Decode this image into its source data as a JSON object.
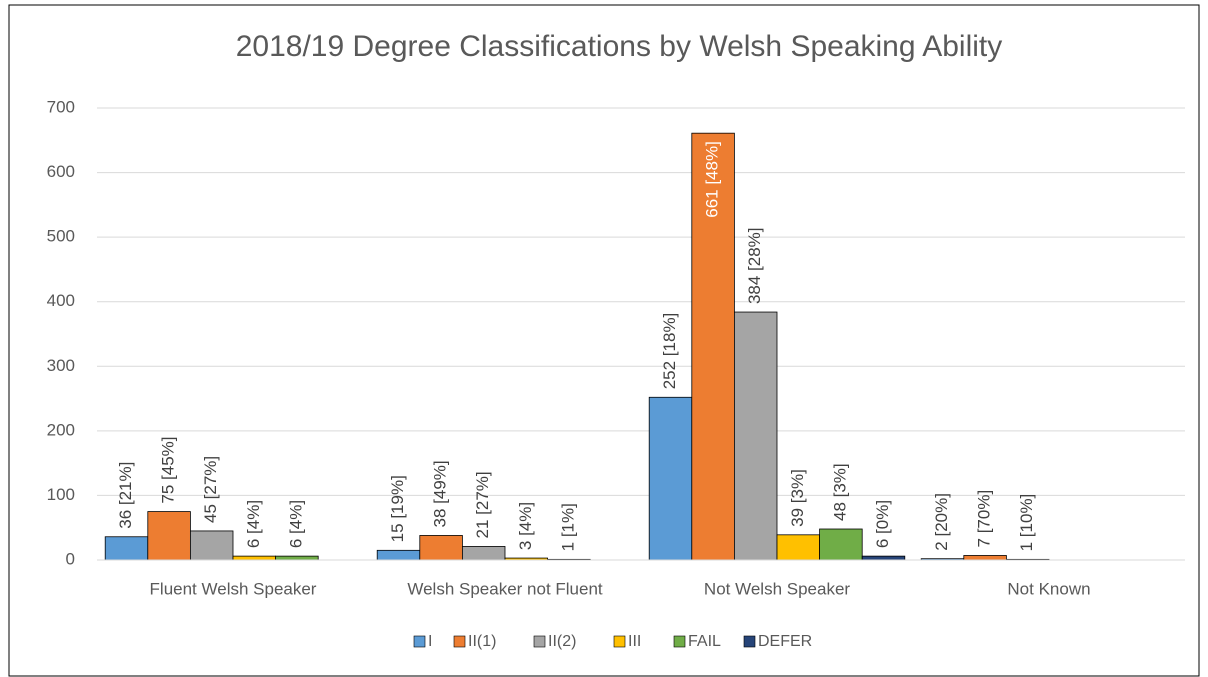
{
  "chart_data": {
    "type": "bar",
    "title": "2018/19 Degree Classifications by Welsh Speaking Ability",
    "categories": [
      "Fluent Welsh Speaker",
      "Welsh Speaker not Fluent",
      "Not Welsh Speaker",
      "Not Known"
    ],
    "series": [
      {
        "name": "I",
        "color": "#5b9bd5",
        "values": [
          36,
          15,
          252,
          2
        ],
        "value_labels": [
          "36 [21%]",
          "15 [19%]",
          "252 [18%]",
          "2 [20%]"
        ]
      },
      {
        "name": "II(1)",
        "color": "#ed7d31",
        "values": [
          75,
          38,
          661,
          7
        ],
        "value_labels": [
          "75 [45%]",
          "38 [49%]",
          "661 [48%]",
          "7 [70%]"
        ]
      },
      {
        "name": "II(2)",
        "color": "#a5a5a5",
        "values": [
          45,
          21,
          384,
          1
        ],
        "value_labels": [
          "45 [27%]",
          "21 [27%]",
          "384 [28%]",
          "1 [10%]"
        ]
      },
      {
        "name": "III",
        "color": "#ffc000",
        "values": [
          6,
          3,
          39,
          null
        ],
        "value_labels": [
          "6 [4%]",
          "3 [4%]",
          "39 [3%]",
          null
        ]
      },
      {
        "name": "FAIL",
        "color": "#70ad47",
        "values": [
          6,
          1,
          48,
          null
        ],
        "value_labels": [
          "6 [4%]",
          "1 [1%]",
          "48 [3%]",
          null
        ]
      },
      {
        "name": "DEFER",
        "color": "#264478",
        "values": [
          null,
          null,
          6,
          null
        ],
        "value_labels": [
          null,
          null,
          "6 [0%]",
          null
        ]
      }
    ],
    "ylim": [
      0,
      700
    ],
    "yticks": [
      0,
      100,
      200,
      300,
      400,
      500,
      600,
      700
    ],
    "grid": true,
    "legend": "bottom"
  }
}
